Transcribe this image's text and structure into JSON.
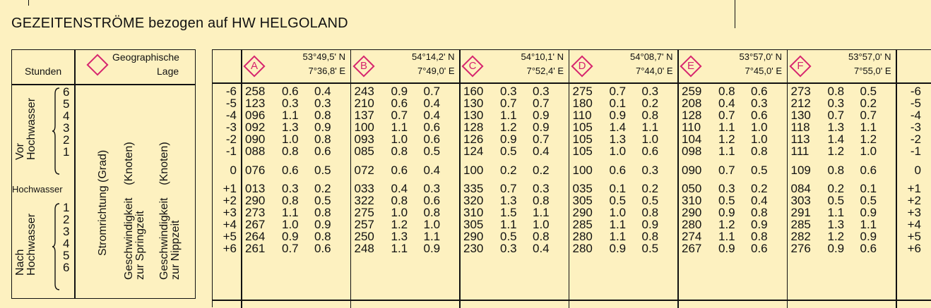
{
  "title": "GEZEITENSTRÖME bezogen auf HW HELGOLAND",
  "legend": {
    "stunden": "Stunden",
    "geo_line1": "Geographische",
    "geo_line2": "Lage",
    "vor_line1": "Vor",
    "vor_line2": "Hochwasser",
    "hochwasser": "Hochwasser",
    "nach_line1": "Nach",
    "nach_line2": "Hochwasser",
    "stromrichtung": "Stromrichtung (Grad)",
    "spring_line1": "Geschwindigkeit",
    "spring_line2": "zur Springzeit",
    "spring_unit": "(Knoten)",
    "nipp_line1": "Geschwindigkeit",
    "nipp_line2": "zur Nippzeit",
    "nipp_unit": "(Knoten)",
    "vor_hours": [
      "6",
      "5",
      "4",
      "3",
      "2",
      "1"
    ],
    "nach_hours": [
      "1",
      "2",
      "3",
      "4",
      "5",
      "6"
    ]
  },
  "hours": [
    "-6",
    "-5",
    "-4",
    "-3",
    "-2",
    "-1",
    "0",
    "+1",
    "+2",
    "+3",
    "+4",
    "+5",
    "+6"
  ],
  "hours_right": [
    "-6",
    "-5",
    "-4",
    "-3",
    "-2",
    "-1",
    "0",
    "+1",
    "+2",
    "+3",
    "+4",
    "+5",
    "+6"
  ],
  "stations": [
    {
      "letter": "A",
      "lat": "53°49,5' N",
      "lon": "7°36,8' E",
      "rows": [
        [
          "258",
          "0.6",
          "0.4"
        ],
        [
          "123",
          "0.3",
          "0.3"
        ],
        [
          "096",
          "1.1",
          "0.8"
        ],
        [
          "092",
          "1.3",
          "0.9"
        ],
        [
          "090",
          "1.0",
          "0.8"
        ],
        [
          "088",
          "0.8",
          "0.6"
        ],
        [
          "076",
          "0.6",
          "0.5"
        ],
        [
          "013",
          "0.3",
          "0.2"
        ],
        [
          "290",
          "0.8",
          "0.5"
        ],
        [
          "273",
          "1.1",
          "0.8"
        ],
        [
          "267",
          "1.0",
          "0.9"
        ],
        [
          "264",
          "0.9",
          "0.8"
        ],
        [
          "261",
          "0.7",
          "0.6"
        ]
      ]
    },
    {
      "letter": "B",
      "lat": "54°14,2' N",
      "lon": "7°49,0' E",
      "rows": [
        [
          "243",
          "0.9",
          "0.7"
        ],
        [
          "210",
          "0.6",
          "0.4"
        ],
        [
          "137",
          "0.7",
          "0.4"
        ],
        [
          "100",
          "1.1",
          "0.6"
        ],
        [
          "093",
          "1.0",
          "0.6"
        ],
        [
          "085",
          "0.8",
          "0.5"
        ],
        [
          "072",
          "0.6",
          "0.4"
        ],
        [
          "033",
          "0.4",
          "0.3"
        ],
        [
          "322",
          "0.8",
          "0.6"
        ],
        [
          "275",
          "1.0",
          "0.8"
        ],
        [
          "257",
          "1.2",
          "1.0"
        ],
        [
          "250",
          "1.3",
          "1.1"
        ],
        [
          "248",
          "1.1",
          "0.9"
        ]
      ]
    },
    {
      "letter": "C",
      "lat": "54°10,1' N",
      "lon": "7°52,4' E",
      "rows": [
        [
          "160",
          "0.3",
          "0.3"
        ],
        [
          "130",
          "0.7",
          "0.7"
        ],
        [
          "130",
          "1.1",
          "0.9"
        ],
        [
          "128",
          "1.2",
          "0.9"
        ],
        [
          "126",
          "0.9",
          "0.7"
        ],
        [
          "124",
          "0.5",
          "0.4"
        ],
        [
          "100",
          "0.2",
          "0.2"
        ],
        [
          "335",
          "0.7",
          "0.3"
        ],
        [
          "320",
          "1.3",
          "0.8"
        ],
        [
          "310",
          "1.5",
          "1.1"
        ],
        [
          "305",
          "1.1",
          "1.0"
        ],
        [
          "290",
          "0.5",
          "0.8"
        ],
        [
          "230",
          "0.3",
          "0.4"
        ]
      ]
    },
    {
      "letter": "D",
      "lat": "54°08,7' N",
      "lon": "7°44,0' E",
      "rows": [
        [
          "275",
          "0.7",
          "0.3"
        ],
        [
          "180",
          "0.1",
          "0.2"
        ],
        [
          "110",
          "0.9",
          "0.8"
        ],
        [
          "105",
          "1.4",
          "1.1"
        ],
        [
          "105",
          "1.3",
          "1.0"
        ],
        [
          "105",
          "1.0",
          "0.6"
        ],
        [
          "100",
          "0.6",
          "0.3"
        ],
        [
          "035",
          "0.1",
          "0.2"
        ],
        [
          "305",
          "0.5",
          "0.5"
        ],
        [
          "290",
          "1.0",
          "0.8"
        ],
        [
          "285",
          "1.1",
          "0.9"
        ],
        [
          "280",
          "1.1",
          "0.8"
        ],
        [
          "280",
          "0.9",
          "0.5"
        ]
      ]
    },
    {
      "letter": "E",
      "lat": "53°57,0' N",
      "lon": "7°45,0' E",
      "rows": [
        [
          "259",
          "0.8",
          "0.6"
        ],
        [
          "208",
          "0.4",
          "0.3"
        ],
        [
          "128",
          "0.7",
          "0.6"
        ],
        [
          "110",
          "1.1",
          "1.0"
        ],
        [
          "104",
          "1.2",
          "1.0"
        ],
        [
          "098",
          "1.1",
          "0.8"
        ],
        [
          "090",
          "0.7",
          "0.5"
        ],
        [
          "050",
          "0.3",
          "0.2"
        ],
        [
          "310",
          "0.5",
          "0.4"
        ],
        [
          "290",
          "0.9",
          "0.8"
        ],
        [
          "280",
          "1.2",
          "0.9"
        ],
        [
          "274",
          "1.1",
          "0.8"
        ],
        [
          "267",
          "0.9",
          "0.6"
        ]
      ]
    },
    {
      "letter": "F",
      "lat": "53°57,0' N",
      "lon": "7°55,0' E",
      "rows": [
        [
          "273",
          "0.8",
          "0.5"
        ],
        [
          "212",
          "0.3",
          "0.2"
        ],
        [
          "130",
          "0.7",
          "0.7"
        ],
        [
          "118",
          "1.3",
          "1.1"
        ],
        [
          "113",
          "1.4",
          "1.2"
        ],
        [
          "111",
          "1.2",
          "1.0"
        ],
        [
          "109",
          "0.8",
          "0.6"
        ],
        [
          "084",
          "0.2",
          "0.1"
        ],
        [
          "303",
          "0.5",
          "0.5"
        ],
        [
          "291",
          "1.1",
          "0.9"
        ],
        [
          "285",
          "1.3",
          "1.1"
        ],
        [
          "282",
          "1.2",
          "0.9"
        ],
        [
          "276",
          "0.9",
          "0.6"
        ]
      ]
    }
  ]
}
